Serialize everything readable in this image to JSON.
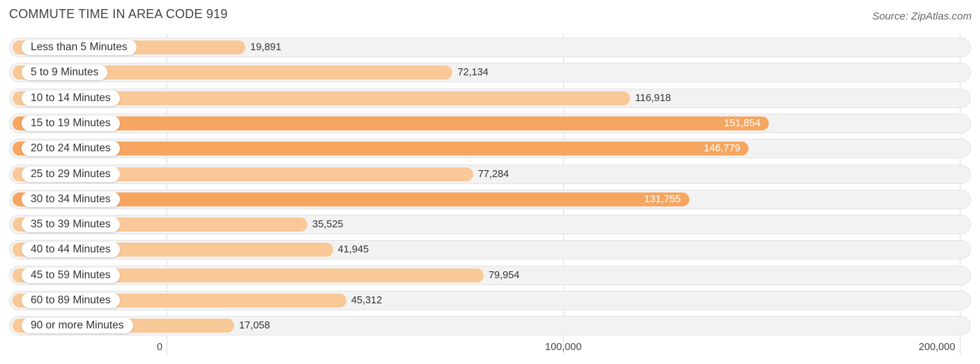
{
  "header": {
    "title": "COMMUTE TIME IN AREA CODE 919",
    "source": "Source: ZipAtlas.com"
  },
  "colors": {
    "bar_light": "#f9c897",
    "bar_dark": "#f6a660",
    "row_bg": "#f2f2f2"
  },
  "chart_data": {
    "type": "bar",
    "orientation": "horizontal",
    "title": "COMMUTE TIME IN AREA CODE 919",
    "xlabel": "",
    "ylabel": "",
    "xlim": [
      0,
      200000
    ],
    "categories": [
      "Less than 5 Minutes",
      "5 to 9 Minutes",
      "10 to 14 Minutes",
      "15 to 19 Minutes",
      "20 to 24 Minutes",
      "25 to 29 Minutes",
      "30 to 34 Minutes",
      "35 to 39 Minutes",
      "40 to 44 Minutes",
      "45 to 59 Minutes",
      "60 to 89 Minutes",
      "90 or more Minutes"
    ],
    "values": [
      19891,
      72134,
      116918,
      151854,
      146779,
      77284,
      131755,
      35525,
      41945,
      79954,
      45312,
      17058
    ],
    "value_labels": [
      "19,891",
      "72,134",
      "116,918",
      "151,854",
      "146,779",
      "77,284",
      "131,755",
      "35,525",
      "41,945",
      "79,954",
      "45,312",
      "17,058"
    ],
    "ticks": [
      0,
      100000,
      200000
    ],
    "tick_labels": [
      "0",
      "100,000",
      "200,000"
    ]
  }
}
